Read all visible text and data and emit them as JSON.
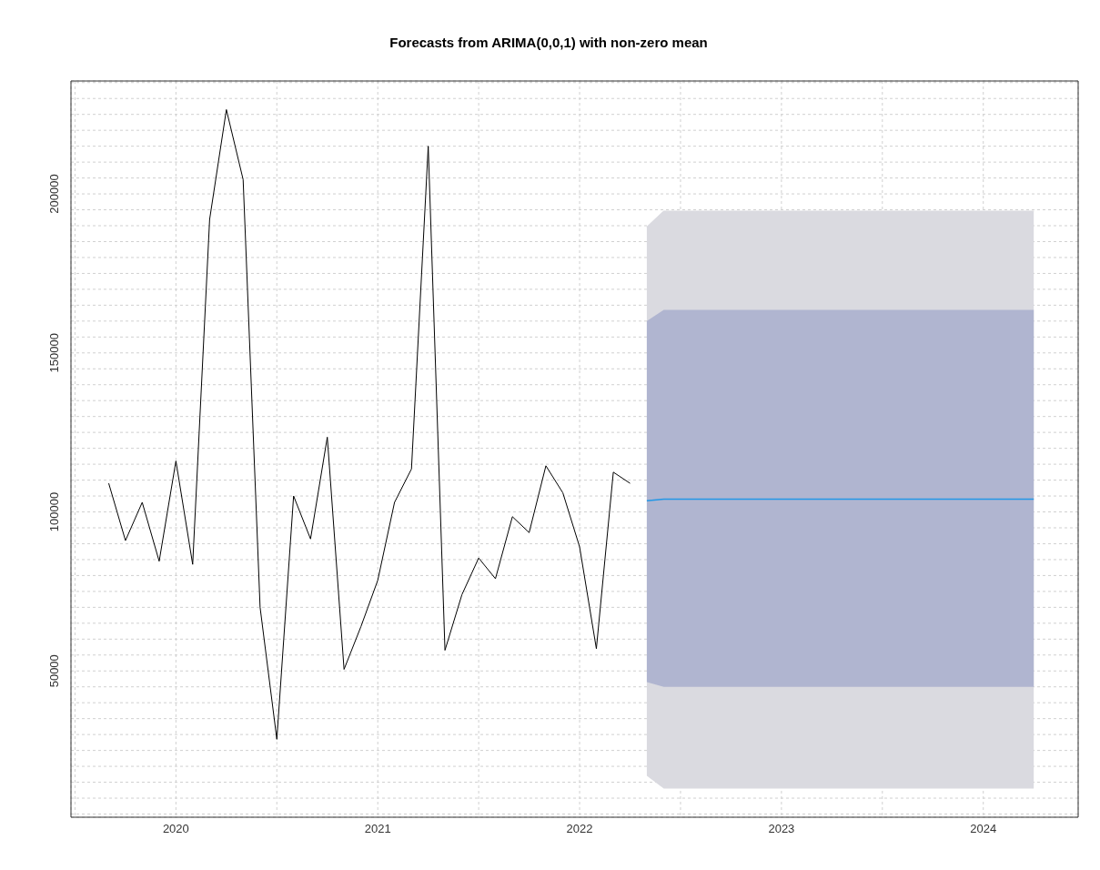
{
  "chart_data": {
    "type": "line",
    "title": "Forecasts from ARIMA(0,0,1) with non-zero mean",
    "xlim": [
      2019.48,
      2024.47
    ],
    "xticks": [
      {
        "value": 2019.5,
        "label": null
      },
      2020,
      {
        "value": 2020.5,
        "label": null
      },
      2021,
      {
        "value": 2021.5,
        "label": null
      },
      2022,
      {
        "value": 2022.5,
        "label": null
      },
      2023,
      {
        "value": 2023.5,
        "label": null
      },
      2024
    ],
    "ylim": [
      4000,
      235500
    ],
    "yticks": [
      {
        "value": 5000,
        "label": null
      },
      {
        "value": 10000,
        "label": null
      },
      {
        "value": 15000,
        "label": null
      },
      {
        "value": 20000,
        "label": null
      },
      {
        "value": 25000,
        "label": null
      },
      {
        "value": 30000,
        "label": null
      },
      {
        "value": 35000,
        "label": null
      },
      {
        "value": 40000,
        "label": null
      },
      {
        "value": 45000,
        "label": null
      },
      50000,
      {
        "value": 55000,
        "label": null
      },
      {
        "value": 60000,
        "label": null
      },
      {
        "value": 65000,
        "label": null
      },
      {
        "value": 70000,
        "label": null
      },
      {
        "value": 75000,
        "label": null
      },
      {
        "value": 80000,
        "label": null
      },
      {
        "value": 85000,
        "label": null
      },
      {
        "value": 90000,
        "label": null
      },
      {
        "value": 95000,
        "label": null
      },
      100000,
      {
        "value": 105000,
        "label": null
      },
      {
        "value": 110000,
        "label": null
      },
      {
        "value": 115000,
        "label": null
      },
      {
        "value": 120000,
        "label": null
      },
      {
        "value": 125000,
        "label": null
      },
      {
        "value": 130000,
        "label": null
      },
      {
        "value": 135000,
        "label": null
      },
      {
        "value": 140000,
        "label": null
      },
      {
        "value": 145000,
        "label": null
      },
      150000,
      {
        "value": 155000,
        "label": null
      },
      {
        "value": 160000,
        "label": null
      },
      {
        "value": 165000,
        "label": null
      },
      {
        "value": 170000,
        "label": null
      },
      {
        "value": 175000,
        "label": null
      },
      {
        "value": 180000,
        "label": null
      },
      {
        "value": 185000,
        "label": null
      },
      {
        "value": 190000,
        "label": null
      },
      {
        "value": 195000,
        "label": null
      },
      200000,
      {
        "value": 205000,
        "label": null
      },
      {
        "value": 210000,
        "label": null
      },
      {
        "value": 215000,
        "label": null
      },
      {
        "value": 220000,
        "label": null
      },
      {
        "value": 225000,
        "label": null
      },
      {
        "value": 230000,
        "label": null
      },
      {
        "value": 235000,
        "label": null
      }
    ],
    "grid": true,
    "legend": false,
    "line_style": "solid",
    "marker": "none",
    "series": [
      {
        "color": "#dadae0",
        "x": [
          2022.333,
          2022.417,
          2022.5,
          2022.583,
          2022.667,
          2022.75,
          2022.833,
          2022.917,
          2023,
          2023.083,
          2023.167,
          2023.25,
          2023.333,
          2023.417,
          2023.5,
          2023.583,
          2023.667,
          2023.75,
          2023.833,
          2023.917,
          2024,
          2024.083,
          2024.167,
          2024.25
        ],
        "lower": [
          17000,
          13000,
          13000,
          13000,
          13000,
          13000,
          13000,
          13000,
          13000,
          13000,
          13000,
          13000,
          13000,
          13000,
          13000,
          13000,
          13000,
          13000,
          13000,
          13000,
          13000,
          13000,
          13000,
          13000
        ],
        "values": [
          189500,
          194500,
          194500,
          194500,
          194500,
          194500,
          194500,
          194500,
          194500,
          194500,
          194500,
          194500,
          194500,
          194500,
          194500,
          194500,
          194500,
          194500,
          194500,
          194500,
          194500,
          194500,
          194500,
          194500
        ],
        "upper": [
          189500,
          194500,
          194500,
          194500,
          194500,
          194500,
          194500,
          194500,
          194500,
          194500,
          194500,
          194500,
          194500,
          194500,
          194500,
          194500,
          194500,
          194500,
          194500,
          194500,
          194500,
          194500,
          194500,
          194500
        ]
      },
      {
        "color": "#2297e6",
        "x": [
          2022.333,
          2022.417,
          2022.5,
          2022.583,
          2022.667,
          2022.75,
          2022.833,
          2022.917,
          2023,
          2023.083,
          2023.167,
          2023.25,
          2023.333,
          2023.417,
          2023.5,
          2023.583,
          2023.667,
          2023.75,
          2023.833,
          2023.917,
          2024,
          2024.083,
          2024.167,
          2024.25
        ],
        "values": [
          103500,
          104000,
          104000,
          104000,
          104000,
          104000,
          104000,
          104000,
          104000,
          104000,
          104000,
          104000,
          104000,
          104000,
          104000,
          104000,
          104000,
          104000,
          104000,
          104000,
          104000,
          104000,
          104000,
          104000
        ],
        "lower": [
          46500,
          45000,
          45000,
          45000,
          45000,
          45000,
          45000,
          45000,
          45000,
          45000,
          45000,
          45000,
          45000,
          45000,
          45000,
          45000,
          45000,
          45000,
          45000,
          45000,
          45000,
          45000,
          45000,
          45000
        ],
        "upper": [
          160000,
          163500,
          163500,
          163500,
          163500,
          163500,
          163500,
          163500,
          163500,
          163500,
          163500,
          163500,
          163500,
          163500,
          163500,
          163500,
          163500,
          163500,
          163500,
          163500,
          163500,
          163500,
          163500,
          163500
        ]
      },
      {
        "color": "#000000",
        "x": [
          2019.667,
          2019.75,
          2019.833,
          2019.917,
          2020,
          2020.083,
          2020.167,
          2020.25,
          2020.333,
          2020.417,
          2020.5,
          2020.583,
          2020.667,
          2020.75,
          2020.833,
          2020.917,
          2021,
          2021.083,
          2021.167,
          2021.25,
          2021.333,
          2021.417,
          2021.5,
          2021.583,
          2021.667,
          2021.75,
          2021.833,
          2021.917,
          2022,
          2022.083,
          2022.167,
          2022.25
        ],
        "values": [
          109000,
          91000,
          103000,
          84500,
          116000,
          83500,
          192000,
          226500,
          204500,
          70000,
          28500,
          105000,
          91500,
          123500,
          50500,
          64000,
          78500,
          103000,
          113500,
          215000,
          56500,
          74000,
          85500,
          79000,
          98500,
          93500,
          114500,
          106000,
          89000,
          57000,
          112500,
          109000
        ]
      }
    ]
  }
}
